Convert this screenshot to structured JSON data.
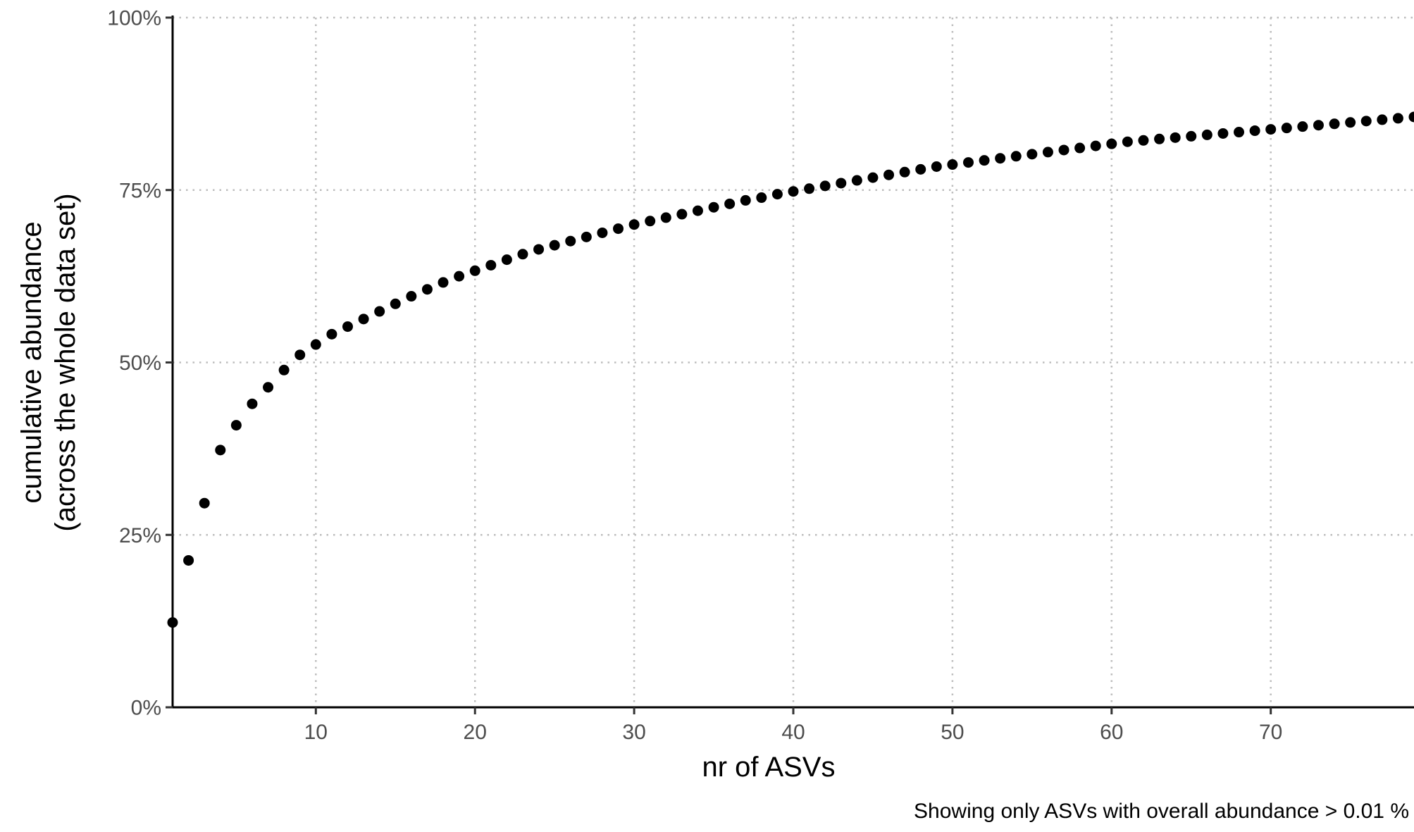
{
  "chart_data": {
    "type": "scatter",
    "xlabel": "nr of ASVs",
    "ylabel_lines": [
      "cumulative abundance",
      "(across the whole data set)"
    ],
    "caption": "Showing only ASVs with overall abundance > 0.01 %",
    "xlim": [
      1,
      79
    ],
    "ylim": [
      0,
      100
    ],
    "x_ticks": [
      10,
      20,
      30,
      40,
      50,
      60,
      70
    ],
    "x_tick_labels": [
      "10",
      "20",
      "30",
      "40",
      "50",
      "60",
      "70"
    ],
    "y_ticks": [
      0,
      25,
      50,
      75,
      100
    ],
    "y_tick_labels": [
      "0%",
      "25%",
      "50%",
      "75%",
      "100%"
    ],
    "grid": "dotted",
    "point_color": "#000000",
    "x": [
      1,
      2,
      3,
      4,
      5,
      6,
      7,
      8,
      9,
      10,
      11,
      12,
      13,
      14,
      15,
      16,
      17,
      18,
      19,
      20,
      21,
      22,
      23,
      24,
      25,
      26,
      27,
      28,
      29,
      30,
      31,
      32,
      33,
      34,
      35,
      36,
      37,
      38,
      39,
      40,
      41,
      42,
      43,
      44,
      45,
      46,
      47,
      48,
      49,
      50,
      51,
      52,
      53,
      54,
      55,
      56,
      57,
      58,
      59,
      60,
      61,
      62,
      63,
      64,
      65,
      66,
      67,
      68,
      69,
      70,
      71,
      72,
      73,
      74,
      75,
      76,
      77,
      78,
      79
    ],
    "y": [
      12.3,
      21.3,
      29.6,
      37.3,
      40.9,
      44.0,
      46.4,
      48.9,
      51.1,
      52.6,
      54.1,
      55.2,
      56.3,
      57.4,
      58.5,
      59.6,
      60.6,
      61.6,
      62.5,
      63.3,
      64.1,
      64.9,
      65.7,
      66.4,
      67.0,
      67.6,
      68.2,
      68.8,
      69.4,
      70.0,
      70.5,
      71.0,
      71.5,
      72.0,
      72.5,
      73.0,
      73.5,
      73.9,
      74.4,
      74.8,
      75.2,
      75.6,
      76.0,
      76.4,
      76.8,
      77.2,
      77.6,
      78.0,
      78.4,
      78.7,
      79.0,
      79.3,
      79.6,
      79.9,
      80.2,
      80.5,
      80.8,
      81.1,
      81.4,
      81.7,
      82.0,
      82.2,
      82.4,
      82.6,
      82.8,
      83.0,
      83.2,
      83.4,
      83.6,
      83.8,
      84.0,
      84.2,
      84.4,
      84.6,
      84.8,
      85.0,
      85.2,
      85.4,
      85.6
    ]
  }
}
